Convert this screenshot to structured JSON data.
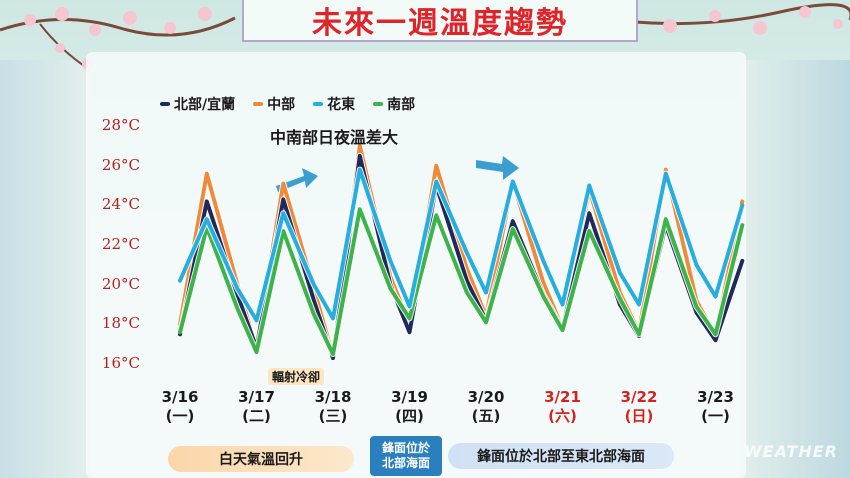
{
  "title": "未來一週溫度趨勢",
  "legend": {
    "north": "北部/宜蘭",
    "central": "中部",
    "east": "花東",
    "south": "南部"
  },
  "annotations": {
    "diurnal": "中南部日夜溫差大",
    "radiative": "輻射冷卻"
  },
  "bottom": {
    "daytime_warm": "白天氣溫回升",
    "front_a": "鋒面位於",
    "front_b": "北部海面",
    "front_location": "鋒面位於北部至東北部海面"
  },
  "watermark": "WEATHER",
  "colors": {
    "north": "#1f2a5c",
    "central": "#f08a3a",
    "east": "#27aee0",
    "south": "#3cb44a",
    "tick_red": "#b8201e",
    "holiday_red": "#d6221f",
    "title_red": "#e0252a"
  },
  "chart_data": {
    "type": "line",
    "ylim": [
      16,
      28
    ],
    "yticks": [
      "16°C",
      "18°C",
      "20°C",
      "22°C",
      "24°C",
      "26°C",
      "28°C"
    ],
    "ytick_values": [
      16,
      18,
      20,
      22,
      24,
      26,
      28
    ],
    "categories": [
      {
        "date": "3/16",
        "weekday": "(一)",
        "holiday": false
      },
      {
        "date": "3/17",
        "weekday": "(二)",
        "holiday": false
      },
      {
        "date": "3/18",
        "weekday": "(三)",
        "holiday": false
      },
      {
        "date": "3/19",
        "weekday": "(四)",
        "holiday": false
      },
      {
        "date": "3/20",
        "weekday": "(五)",
        "holiday": false
      },
      {
        "date": "3/21",
        "weekday": "(六)",
        "holiday": true
      },
      {
        "date": "3/22",
        "weekday": "(日)",
        "holiday": true
      },
      {
        "date": "3/23",
        "weekday": "(一)",
        "holiday": false
      }
    ],
    "x": [
      0,
      0.35,
      0.75,
      1,
      1.35,
      1.75,
      2,
      2.35,
      2.75,
      3,
      3.35,
      3.75,
      4,
      4.35,
      4.75,
      5,
      5.35,
      5.75,
      6,
      6.35,
      6.75,
      7,
      7.35
    ],
    "series": [
      {
        "key": "north",
        "name": "北部/宜蘭",
        "values": [
          17.5,
          24.2,
          19.5,
          16.8,
          24.3,
          19.2,
          16.3,
          26.5,
          20.0,
          17.6,
          25.0,
          20.2,
          18.2,
          23.2,
          19.5,
          17.8,
          23.6,
          19.0,
          17.4,
          23.0,
          18.6,
          17.2,
          21.2
        ]
      },
      {
        "key": "central",
        "name": "中部",
        "values": [
          18.0,
          25.6,
          20.0,
          16.8,
          25.1,
          19.8,
          16.4,
          27.0,
          20.4,
          18.0,
          26.0,
          20.8,
          18.4,
          25.2,
          20.1,
          17.8,
          24.8,
          19.6,
          17.6,
          25.8,
          19.2,
          17.4,
          24.2
        ]
      },
      {
        "key": "east",
        "name": "花東",
        "values": [
          20.2,
          23.3,
          19.8,
          18.2,
          23.6,
          20.0,
          18.3,
          25.8,
          21.2,
          18.9,
          25.2,
          21.6,
          19.6,
          25.2,
          21.2,
          19.0,
          25.0,
          20.6,
          19.0,
          25.6,
          21.0,
          19.4,
          24.0
        ]
      },
      {
        "key": "south",
        "name": "南部",
        "values": [
          17.6,
          22.9,
          18.8,
          16.6,
          22.7,
          18.5,
          16.5,
          23.8,
          19.8,
          18.3,
          23.5,
          19.6,
          18.1,
          22.8,
          19.4,
          17.7,
          22.7,
          19.3,
          17.5,
          23.3,
          18.9,
          17.5,
          23.0
        ]
      }
    ],
    "grid": false,
    "legend_position": "top-left"
  }
}
